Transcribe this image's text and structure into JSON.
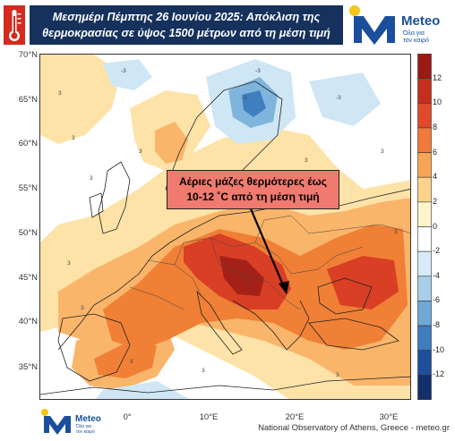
{
  "header": {
    "title_line1": "Μεσημέρι Πέμπτης 26 Ιουνίου 2025: Απόκλιση της",
    "title_line2": "θερμοκρασίας σε ύψος 1500 μέτρων από τη μέση τιμή",
    "logo_text": "Meteo",
    "logo_slogan_line1": "Όλα για",
    "logo_slogan_line2": "τον καιρό"
  },
  "map": {
    "lat_ticks": [
      "70°N",
      "65°N",
      "60°N",
      "55°N",
      "50°N",
      "45°N",
      "40°N",
      "35°N"
    ],
    "lon_ticks": [
      "0°",
      "10°E",
      "20°E",
      "30°E"
    ],
    "contour_label": "3",
    "negative_contour_label": "-3",
    "colors": {
      "cold_light": "#cfe6f5",
      "cold_mid": "#7fb5dc",
      "cold_dark": "#3f7fbf",
      "warm_light": "#fde3a8",
      "warm_mid": "#f9b56a",
      "warm_orange": "#ef8036",
      "warm_red": "#d83f25",
      "warm_dark": "#a52118"
    }
  },
  "colorbar": {
    "labels": [
      "12",
      "10",
      "8",
      "6",
      "4",
      "2",
      "0",
      "-2",
      "-4",
      "-6",
      "-8",
      "-10",
      "-12"
    ],
    "colors": [
      "#9b1a14",
      "#c4301d",
      "#e04a2b",
      "#ef7a3a",
      "#f7a554",
      "#fdd38a",
      "#fff3cc",
      "#ffffff",
      "#d6ebf7",
      "#a8cfea",
      "#6fa9d7",
      "#3f7cc0",
      "#1f4e9a",
      "#14306a"
    ]
  },
  "annotation": {
    "line1": "Αέριες μάζες θερμότερες έως",
    "line2": "10-12 ˚C από τη μέση τιμή"
  },
  "footer": {
    "credit": "National Observatory of Athens, Greece - meteo.gr",
    "logo_text": "Meteo",
    "logo_slogan_line1": "Όλα για",
    "logo_slogan_line2": "τον καιρό"
  }
}
